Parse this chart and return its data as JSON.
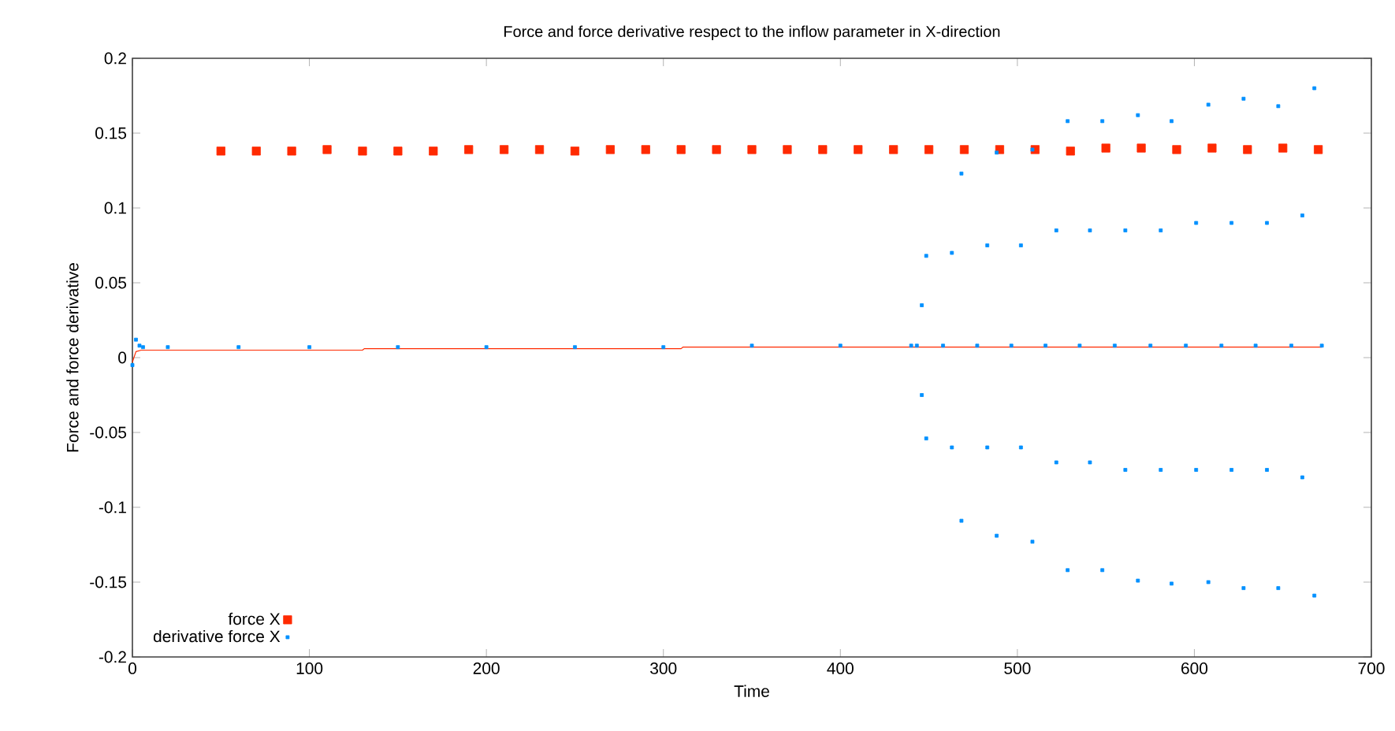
{
  "chart_data": {
    "type": "scatter",
    "title": "Force and force derivative respect to the inflow parameter in X-direction",
    "xlabel": "Time",
    "ylabel": "Force and force derivative",
    "xlim": [
      0,
      700
    ],
    "ylim": [
      -0.2,
      0.2
    ],
    "xticks": [
      0,
      100,
      200,
      300,
      400,
      500,
      600,
      700
    ],
    "yticks": [
      -0.2,
      -0.15,
      -0.1,
      -0.05,
      0,
      0.05,
      0.1,
      0.15,
      0.2
    ],
    "marker": "square",
    "legend": "bottom left",
    "grid": false,
    "series": [
      {
        "name": "force X",
        "color": "#ff2a00",
        "x": [
          50,
          70,
          90,
          110,
          130,
          150,
          170,
          190,
          210,
          230,
          250,
          270,
          290,
          310,
          330,
          350,
          370,
          390,
          410,
          430,
          450,
          470,
          490,
          510,
          530,
          550,
          570,
          590,
          610,
          630,
          650,
          670
        ],
        "values": [
          0.138,
          0.138,
          0.138,
          0.139,
          0.138,
          0.138,
          0.138,
          0.139,
          0.139,
          0.139,
          0.138,
          0.139,
          0.139,
          0.139,
          0.139,
          0.139,
          0.139,
          0.139,
          0.139,
          0.139,
          0.139,
          0.139,
          0.139,
          0.139,
          0.138,
          0.14,
          0.14,
          0.139,
          0.14,
          0.139,
          0.14,
          0.139
        ]
      },
      {
        "name": "derivative force X",
        "color": "#0090ff",
        "x": [
          0,
          2,
          4,
          6,
          20,
          60,
          100,
          150,
          200,
          250,
          300,
          350,
          400,
          440,
          443.2,
          446,
          448.5,
          448.5,
          446,
          458,
          463,
          468.4,
          468.4,
          463,
          477.3,
          483,
          488.3,
          488.3,
          483,
          496.6,
          502,
          508.5,
          508.5,
          502,
          515.9,
          522,
          528.4,
          528.4,
          522,
          535.2,
          541,
          548,
          548,
          541,
          555,
          561,
          568.1,
          568.1,
          561,
          575.2,
          581,
          587.1,
          587.1,
          581,
          595.2,
          601,
          607.9,
          607.9,
          601,
          615.3,
          621,
          627.8,
          627.8,
          621,
          634.6,
          641,
          647.4,
          647.4,
          641,
          654.8,
          661,
          667.8,
          667.8,
          661,
          672
        ],
        "values": [
          -0.005,
          0.012,
          0.008,
          0.007,
          0.007,
          0.007,
          0.007,
          0.007,
          0.007,
          0.007,
          0.007,
          0.008,
          0.008,
          0.008,
          0.008,
          0.035,
          0.068,
          -0.054,
          -0.025,
          0.008,
          0.07,
          0.123,
          -0.109,
          -0.06,
          0.008,
          0.075,
          0.137,
          -0.119,
          -0.06,
          0.008,
          0.075,
          0.139,
          -0.123,
          -0.06,
          0.008,
          0.085,
          0.158,
          -0.142,
          -0.07,
          0.008,
          0.085,
          0.158,
          -0.142,
          -0.07,
          0.008,
          0.085,
          0.162,
          -0.149,
          -0.075,
          0.008,
          0.085,
          0.158,
          -0.151,
          -0.075,
          0.008,
          0.09,
          0.169,
          -0.15,
          -0.075,
          0.008,
          0.09,
          0.173,
          -0.154,
          -0.075,
          0.008,
          0.09,
          0.168,
          -0.154,
          -0.075,
          0.008,
          0.095,
          0.18,
          -0.159,
          -0.08,
          0.008
        ]
      },
      {
        "type": "line",
        "marker": "none",
        "color": "#ff2a00",
        "x": [
          0,
          2,
          5,
          130,
          131,
          310,
          311,
          672
        ],
        "values": [
          -0.003,
          0.004,
          0.005,
          0.005,
          0.006,
          0.006,
          0.007,
          0.007
        ]
      }
    ]
  }
}
